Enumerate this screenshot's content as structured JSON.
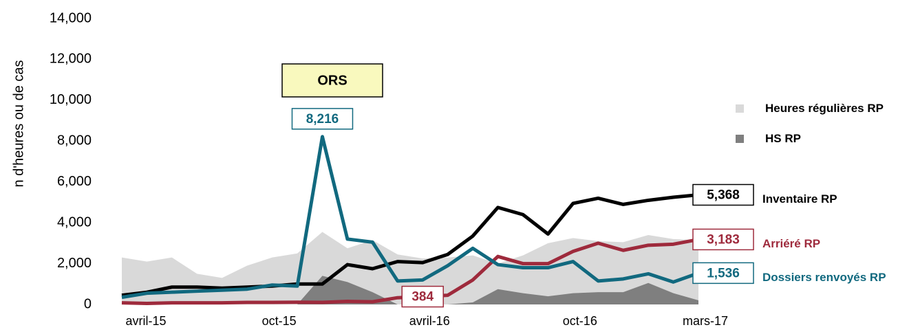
{
  "chart_data": {
    "type": "line",
    "y_label": "n d'heures ou de cas",
    "annotation": "ORS",
    "categories": [
      "avril-15",
      null,
      null,
      null,
      null,
      null,
      "oct-15",
      null,
      null,
      null,
      null,
      null,
      "avril-16",
      null,
      null,
      null,
      null,
      null,
      "oct-16",
      null,
      null,
      null,
      null,
      "mars-17"
    ],
    "ylim": [
      0,
      14000
    ],
    "yticks": [
      0,
      {
        "value": 2000,
        "label": "2,000"
      },
      {
        "value": 4000,
        "label": "4,000"
      },
      {
        "value": 6000,
        "label": "6,000"
      },
      {
        "value": 8000,
        "label": "8,000"
      },
      {
        "value": 10000,
        "label": "10,000"
      },
      {
        "value": 12000,
        "label": "12,000"
      },
      {
        "value": 14000,
        "label": "14,000"
      }
    ],
    "series": [
      {
        "name": "Heures régulières RP",
        "type": "area",
        "color": "#d9d9d9",
        "values": [
          2300,
          2100,
          2300,
          1500,
          1300,
          1900,
          2300,
          2500,
          3550,
          2750,
          3150,
          2450,
          2250,
          2300,
          2400,
          2000,
          2400,
          3000,
          3250,
          3100,
          3050,
          3400,
          3200,
          3150
        ]
      },
      {
        "name": "HS RP",
        "type": "area",
        "color": "#7f7f7f",
        "values": [
          0,
          0,
          0,
          0,
          0,
          0,
          0,
          0,
          1400,
          1100,
          600,
          0,
          0,
          0,
          100,
          750,
          550,
          400,
          550,
          600,
          600,
          1050,
          550,
          200
        ]
      },
      {
        "name": "Inventaire RP",
        "type": "line",
        "color": "#000000",
        "values": [
          450,
          600,
          850,
          850,
          800,
          850,
          900,
          1000,
          1000,
          1950,
          1750,
          2100,
          2050,
          2450,
          3350,
          4750,
          4400,
          3450,
          4950,
          5200,
          4900,
          5100,
          5250,
          5368
        ],
        "value_labels": [
          null,
          null,
          null,
          null,
          null,
          null,
          null,
          null,
          null,
          null,
          null,
          null,
          null,
          null,
          null,
          null,
          null,
          null,
          null,
          null,
          null,
          null,
          null,
          "5,368"
        ]
      },
      {
        "name": "Arriéré RP",
        "type": "line",
        "color": "#9e2a3c",
        "values": [
          80,
          50,
          80,
          80,
          80,
          100,
          100,
          110,
          100,
          150,
          130,
          330,
          384,
          450,
          1200,
          2350,
          2000,
          2000,
          2600,
          3000,
          2650,
          2900,
          2950,
          3183
        ],
        "value_labels": [
          null,
          null,
          null,
          null,
          null,
          null,
          null,
          null,
          null,
          null,
          null,
          null,
          "384",
          null,
          null,
          null,
          null,
          null,
          null,
          null,
          null,
          null,
          null,
          "3,183"
        ]
      },
      {
        "name": "Dossiers renvoyés RP",
        "type": "line",
        "color": "#11697f",
        "values": [
          350,
          550,
          600,
          650,
          700,
          750,
          950,
          900,
          8216,
          3200,
          3050,
          1150,
          1200,
          1900,
          2750,
          1950,
          1800,
          1800,
          2100,
          1150,
          1250,
          1500,
          1100,
          1536
        ],
        "value_labels": [
          null,
          null,
          null,
          null,
          null,
          null,
          null,
          null,
          "8,216",
          null,
          null,
          null,
          null,
          null,
          null,
          null,
          null,
          null,
          null,
          null,
          null,
          null,
          null,
          "1,536"
        ]
      }
    ]
  }
}
